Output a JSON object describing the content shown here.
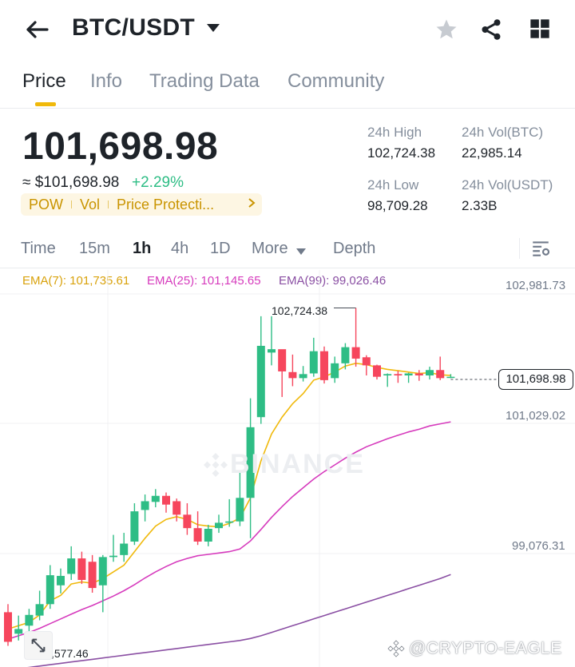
{
  "header": {
    "pair": "BTC/USDT",
    "icons": {
      "back": "arrow-left-icon",
      "caret": "caret-down-icon",
      "favorite": "star-icon",
      "share": "share-icon",
      "layout": "grid-icon"
    },
    "colors": {
      "favorite": "#c7cbd1"
    }
  },
  "tabs": [
    {
      "label": "Price",
      "active": true
    },
    {
      "label": "Info",
      "active": false
    },
    {
      "label": "Trading Data",
      "active": false
    },
    {
      "label": "Community",
      "active": false
    }
  ],
  "ticker": {
    "last_price": "101,698.98",
    "usd_value": "≈ $101,698.98",
    "change": "+2.29%",
    "tags": [
      "POW",
      "Vol",
      "Price Protecti..."
    ],
    "stats": {
      "high_label": "24h High",
      "high_value": "102,724.38",
      "low_label": "24h Low",
      "low_value": "98,709.28",
      "vol_btc_label": "24h Vol(BTC)",
      "vol_btc_value": "22,985.14",
      "vol_usdt_label": "24h Vol(USDT)",
      "vol_usdt_value": "2.33B"
    },
    "colors": {
      "up": "#2ebd85",
      "down": "#f6465d",
      "tag": "#c99400"
    }
  },
  "timeframes": {
    "items": [
      "Time",
      "15m",
      "1h",
      "4h",
      "1D",
      "More",
      "Depth"
    ],
    "active": "1h",
    "settings_icon": "chart-settings-icon"
  },
  "indicators": {
    "ema7": "EMA(7): 101,735.61",
    "ema25": "EMA(25): 101,145.65",
    "ema99": "EMA(99): 99,026.46",
    "colors": {
      "ema7": "#f0b90b",
      "ema25": "#d63bbd",
      "ema99": "#8a4fa3"
    }
  },
  "chart_data": {
    "type": "candlestick",
    "y_axis_labels": [
      "102,981.73",
      "101,029.02",
      "99,076.31"
    ],
    "current_price": "101,698.98",
    "high_marker": "102,724.38",
    "low_marker": ",577.46",
    "candles": [
      {
        "o": 98200,
        "h": 98320,
        "l": 97700,
        "c": 97760
      },
      {
        "o": 97880,
        "h": 98150,
        "l": 97780,
        "c": 97950
      },
      {
        "o": 98000,
        "h": 98250,
        "l": 97920,
        "c": 98160
      },
      {
        "o": 98150,
        "h": 98520,
        "l": 98080,
        "c": 98320
      },
      {
        "o": 98320,
        "h": 98900,
        "l": 98250,
        "c": 98750
      },
      {
        "o": 98600,
        "h": 98850,
        "l": 98480,
        "c": 98740
      },
      {
        "o": 98770,
        "h": 99180,
        "l": 98680,
        "c": 99000
      },
      {
        "o": 99000,
        "h": 99100,
        "l": 98620,
        "c": 98680
      },
      {
        "o": 98950,
        "h": 99050,
        "l": 98490,
        "c": 98560
      },
      {
        "o": 98600,
        "h": 99050,
        "l": 98200,
        "c": 99020
      },
      {
        "o": 99020,
        "h": 99350,
        "l": 98950,
        "c": 99040
      },
      {
        "o": 99050,
        "h": 99380,
        "l": 98950,
        "c": 99220
      },
      {
        "o": 99250,
        "h": 99820,
        "l": 99200,
        "c": 99700
      },
      {
        "o": 99720,
        "h": 99950,
        "l": 99550,
        "c": 99850
      },
      {
        "o": 99840,
        "h": 100030,
        "l": 99760,
        "c": 99930
      },
      {
        "o": 99930,
        "h": 99980,
        "l": 99680,
        "c": 99800
      },
      {
        "o": 99850,
        "h": 99890,
        "l": 99550,
        "c": 99650
      },
      {
        "o": 99650,
        "h": 99820,
        "l": 99350,
        "c": 99450
      },
      {
        "o": 99450,
        "h": 99700,
        "l": 99200,
        "c": 99250
      },
      {
        "o": 99250,
        "h": 99500,
        "l": 99180,
        "c": 99440
      },
      {
        "o": 99450,
        "h": 99650,
        "l": 99380,
        "c": 99530
      },
      {
        "o": 99530,
        "h": 99880,
        "l": 99470,
        "c": 99550
      },
      {
        "o": 99550,
        "h": 100280,
        "l": 99480,
        "c": 99900
      },
      {
        "o": 99900,
        "h": 101380,
        "l": 99300,
        "c": 100950
      },
      {
        "o": 101100,
        "h": 102600,
        "l": 101000,
        "c": 102160
      },
      {
        "o": 102060,
        "h": 102600,
        "l": 101870,
        "c": 102110
      },
      {
        "o": 102110,
        "h": 102100,
        "l": 101400,
        "c": 101780
      },
      {
        "o": 101770,
        "h": 102030,
        "l": 101560,
        "c": 101680
      },
      {
        "o": 101680,
        "h": 101860,
        "l": 101630,
        "c": 101740
      },
      {
        "o": 101750,
        "h": 102280,
        "l": 101700,
        "c": 102080
      },
      {
        "o": 102080,
        "h": 102150,
        "l": 101600,
        "c": 101650
      },
      {
        "o": 101680,
        "h": 102000,
        "l": 101610,
        "c": 101900
      },
      {
        "o": 101900,
        "h": 102200,
        "l": 101810,
        "c": 102140
      },
      {
        "o": 102140,
        "h": 102724,
        "l": 101850,
        "c": 101970
      },
      {
        "o": 101990,
        "h": 102020,
        "l": 101720,
        "c": 101870
      },
      {
        "o": 101870,
        "h": 101880,
        "l": 101660,
        "c": 101700
      },
      {
        "o": 101720,
        "h": 101750,
        "l": 101550,
        "c": 101740
      },
      {
        "o": 101740,
        "h": 101790,
        "l": 101610,
        "c": 101720
      },
      {
        "o": 101720,
        "h": 101760,
        "l": 101610,
        "c": 101750
      },
      {
        "o": 101750,
        "h": 101800,
        "l": 101640,
        "c": 101720
      },
      {
        "o": 101720,
        "h": 101850,
        "l": 101660,
        "c": 101800
      },
      {
        "o": 101800,
        "h": 102000,
        "l": 101650,
        "c": 101680
      },
      {
        "o": 101690,
        "h": 101740,
        "l": 101680,
        "c": 101700
      }
    ],
    "ema7_line": [
      97950,
      98000,
      98050,
      98160,
      98370,
      98450,
      98620,
      98650,
      98630,
      98700,
      98800,
      98900,
      99100,
      99300,
      99480,
      99580,
      99620,
      99580,
      99500,
      99480,
      99470,
      99520,
      99600,
      99900,
      100450,
      100850,
      101100,
      101300,
      101450,
      101650,
      101700,
      101770,
      101860,
      101900,
      101880,
      101840,
      101810,
      101790,
      101770,
      101750,
      101760,
      101730,
      101720
    ],
    "ema25_line": [
      97800,
      97850,
      97900,
      97960,
      98030,
      98100,
      98170,
      98240,
      98300,
      98370,
      98440,
      98520,
      98610,
      98710,
      98800,
      98880,
      98950,
      99000,
      99040,
      99060,
      99080,
      99100,
      99140,
      99260,
      99430,
      99610,
      99770,
      99920,
      100050,
      100180,
      100290,
      100390,
      100490,
      100580,
      100660,
      100720,
      100780,
      100830,
      100880,
      100920,
      100970,
      101000,
      101030
    ],
    "ema99_line": [
      97350,
      97360,
      97380,
      97400,
      97420,
      97440,
      97460,
      97480,
      97500,
      97520,
      97540,
      97560,
      97580,
      97600,
      97620,
      97640,
      97660,
      97680,
      97700,
      97720,
      97740,
      97760,
      97780,
      97810,
      97850,
      97900,
      97950,
      98000,
      98050,
      98100,
      98150,
      98200,
      98250,
      98300,
      98350,
      98400,
      98450,
      98500,
      98550,
      98600,
      98650,
      98700,
      98760
    ]
  },
  "overlay": {
    "expand_icon": "expand-icon",
    "watermark": "@CRYPTO-EAGLE",
    "binance_watermark": "BINANCE"
  }
}
